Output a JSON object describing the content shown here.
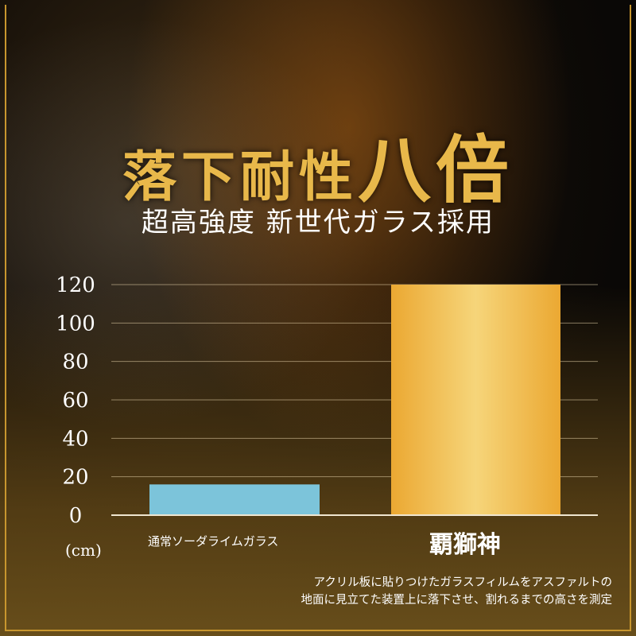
{
  "header": {
    "title_main": "落下耐性",
    "title_emphasis": "八倍",
    "subtitle": "超高強度 新世代ガラス採用"
  },
  "chart_data": {
    "type": "bar",
    "categories": [
      "通常ソーダライムガラス",
      "覇獅神"
    ],
    "values": [
      16,
      120
    ],
    "colors": [
      "#7cc4da",
      "#f0b840"
    ],
    "ylabel": "(cm)",
    "ylim": [
      0,
      120
    ],
    "yticks": [
      0,
      20,
      40,
      60,
      80,
      100,
      120
    ],
    "grid": true
  },
  "footnote": [
    "アクリル板に貼りつけたガラスフィルムをアスファルトの",
    "地面に見立てた装置上に落下させ、割れるまでの高さを測定"
  ],
  "brand_logo": "覇獅神"
}
